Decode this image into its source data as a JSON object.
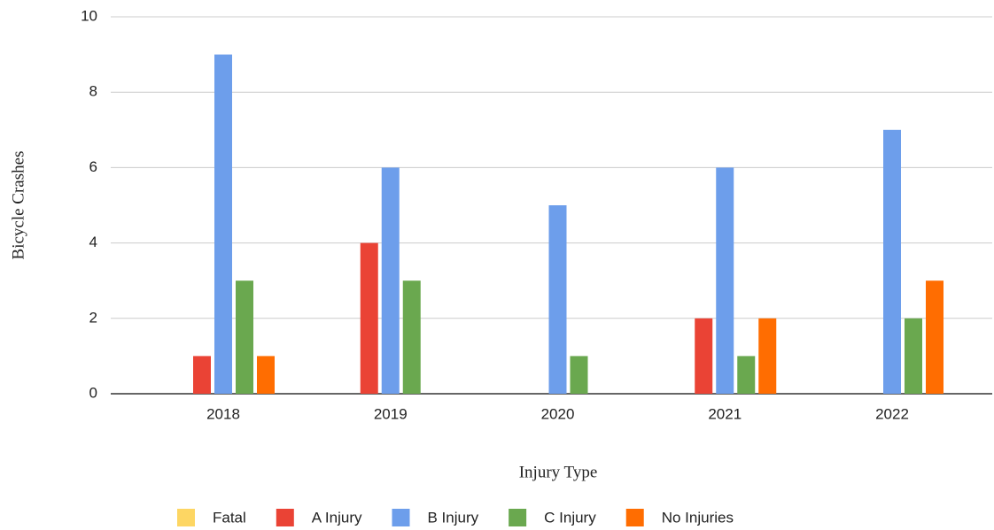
{
  "chart_data": {
    "type": "bar",
    "x_label": "Injury Type",
    "y_label": "Bicycle Crashes",
    "categories": [
      "2018",
      "2019",
      "2020",
      "2021",
      "2022"
    ],
    "series": [
      {
        "name": "Fatal",
        "color": "#fdd663",
        "values": [
          0,
          0,
          0,
          0,
          0
        ]
      },
      {
        "name": "A Injury",
        "color": "#ea4335",
        "values": [
          1,
          4,
          0,
          2,
          0
        ]
      },
      {
        "name": "B Injury",
        "color": "#6d9eeb",
        "values": [
          9,
          6,
          5,
          6,
          7
        ]
      },
      {
        "name": "C Injury",
        "color": "#6aa84f",
        "values": [
          3,
          3,
          1,
          1,
          2
        ]
      },
      {
        "name": "No Injuries",
        "color": "#ff6d01",
        "values": [
          1,
          0,
          0,
          2,
          3
        ]
      }
    ],
    "ylim": [
      0,
      10
    ],
    "yticks": [
      0,
      2,
      4,
      6,
      8,
      10
    ],
    "grid": true,
    "legend": "bottom"
  }
}
